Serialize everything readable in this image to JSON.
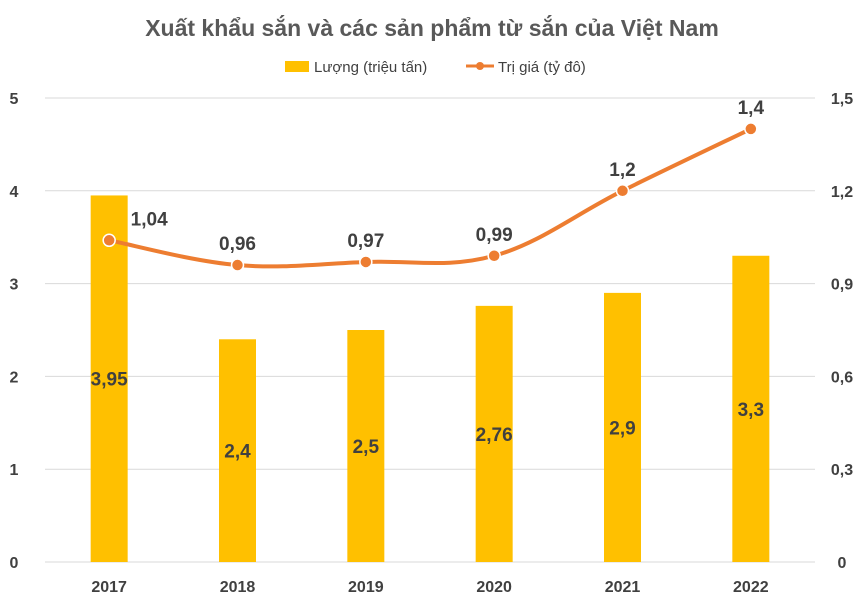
{
  "chart_data": {
    "type": "bar+line",
    "title": "Xuất khẩu sắn và các sản phẩm từ sắn của Việt Nam",
    "categories": [
      "2017",
      "2018",
      "2019",
      "2020",
      "2021",
      "2022"
    ],
    "series": [
      {
        "name": "Lượng (triệu tấn)",
        "type": "bar",
        "axis": "left",
        "color": "#FFC000",
        "values": [
          3.95,
          2.4,
          2.5,
          2.76,
          2.9,
          3.3
        ],
        "labels": [
          "3,95",
          "2,4",
          "2,5",
          "2,76",
          "2,9",
          "3,3"
        ]
      },
      {
        "name": "Trị giá (tỷ đô)",
        "type": "line",
        "axis": "right",
        "color": "#ED7D31",
        "values": [
          1.04,
          0.96,
          0.97,
          0.99,
          1.2,
          1.4
        ],
        "labels": [
          "1,04",
          "0,96",
          "0,97",
          "0,99",
          "1,2",
          "1,4"
        ]
      }
    ],
    "y_left": {
      "min": 0,
      "max": 5,
      "ticks": [
        "0",
        "1",
        "2",
        "3",
        "4",
        "5"
      ]
    },
    "y_right": {
      "min": 0,
      "max": 1.5,
      "ticks": [
        "0",
        "0,3",
        "0,6",
        "0,9",
        "1,2",
        "1,5"
      ]
    },
    "grid": true,
    "legend_position": "top"
  }
}
